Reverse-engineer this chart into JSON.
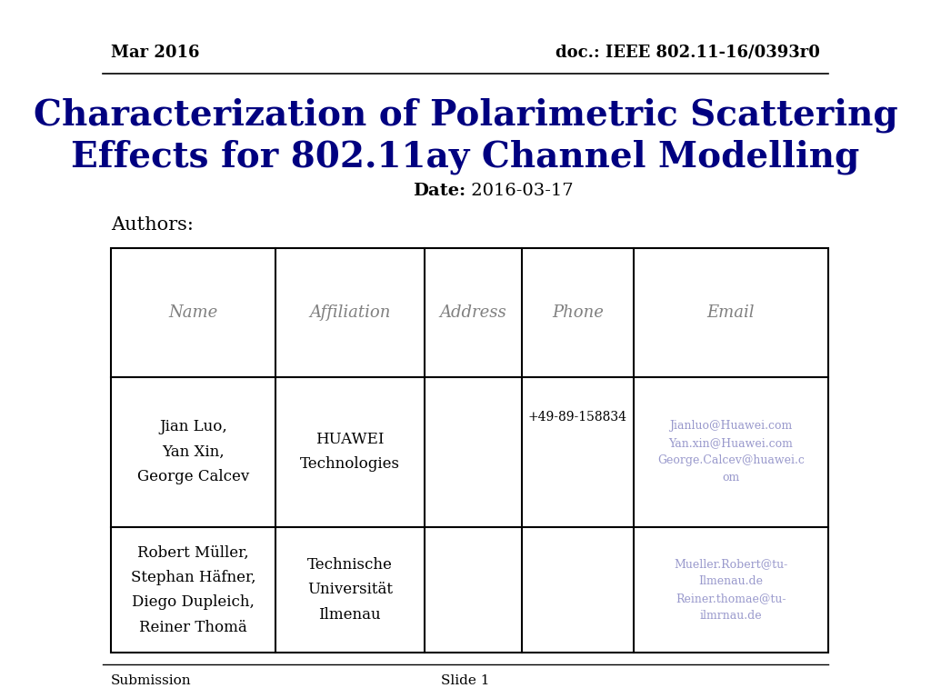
{
  "header_left": "Mar 2016",
  "header_right": "doc.: IEEE 802.11-16/0393r0",
  "title_line1": "Characterization of Polarimetric Scattering",
  "title_line2": "Effects for 802.11ay Channel Modelling",
  "date_label": "Date:",
  "date_value": "2016-03-17",
  "authors_label": "Authors:",
  "table_headers": [
    "Name",
    "Affiliation",
    "Address",
    "Phone",
    "Email"
  ],
  "table_row1_name": "Jian Luo,\nYan Xin,\nGeorge Calcev",
  "table_row1_affiliation": "HUAWEI\nTechnologies",
  "table_row1_address": "",
  "table_row1_phone": "+49-89-158834",
  "table_row1_email": "Jianluo@Huawei.com\nYan.xin@Huawei.com\nGeorge.Calcev@huawei.c\nom",
  "table_row2_name": "Robert Müller,\nStephan Häfner,\nDiego Dupleich,\nReiner Thomä",
  "table_row2_affiliation": "Technische\nUniversität\nIlmenau",
  "table_row2_address": "",
  "table_row2_phone": "",
  "table_row2_email": "Mueller.Robert@tu-\nIlmenau.de\nReiner.thomae@tu-\nilmrnau.de",
  "footer_left": "Submission",
  "footer_center": "Slide 1",
  "bg_color": "#ffffff",
  "title_color": "#000080",
  "header_color": "#000000",
  "table_header_color": "#808080",
  "email_color": "#9999cc",
  "table_border_color": "#000000",
  "footer_line_color": "#000000"
}
